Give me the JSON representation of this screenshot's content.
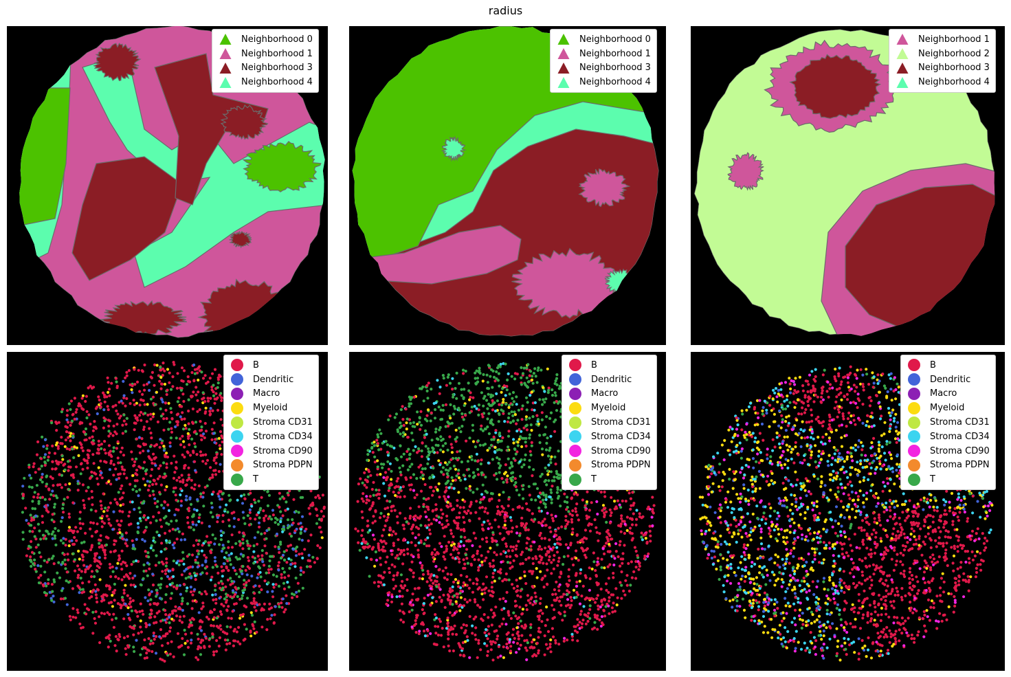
{
  "figure": {
    "title": "radius"
  },
  "colors": {
    "Neighborhood 0": "#4cc200",
    "Neighborhood 1": "#cf569b",
    "Neighborhood 2": "#c2fb95",
    "Neighborhood 3": "#8b1d25",
    "Neighborhood 4": "#5cfdae",
    "B": "#e0194a",
    "Dendritic": "#4264d9",
    "Macro": "#8c20b4",
    "Myeloid": "#fcdc10",
    "Stroma CD31": "#bfe842",
    "Stroma CD34": "#3cd4f0",
    "Stroma CD90": "#f224e0",
    "Stroma PDPN": "#f38a2c",
    "T": "#38a84a"
  },
  "chart_data": [
    {
      "type": "heatmap",
      "row": "top",
      "column": 1,
      "marker": "triangle",
      "legend": [
        "Neighborhood 0",
        "Neighborhood 1",
        "Neighborhood 3",
        "Neighborhood 4"
      ]
    },
    {
      "type": "heatmap",
      "row": "top",
      "column": 2,
      "marker": "triangle",
      "legend": [
        "Neighborhood 0",
        "Neighborhood 1",
        "Neighborhood 3",
        "Neighborhood 4"
      ]
    },
    {
      "type": "heatmap",
      "row": "top",
      "column": 3,
      "marker": "triangle",
      "legend": [
        "Neighborhood 1",
        "Neighborhood 2",
        "Neighborhood 3",
        "Neighborhood 4"
      ]
    },
    {
      "type": "scatter",
      "row": "bottom",
      "column": 1,
      "marker": "circle",
      "legend": [
        "B",
        "Dendritic",
        "Macro",
        "Myeloid",
        "Stroma CD31",
        "Stroma CD34",
        "Stroma CD90",
        "Stroma PDPN",
        "T"
      ]
    },
    {
      "type": "scatter",
      "row": "bottom",
      "column": 2,
      "marker": "circle",
      "legend": [
        "B",
        "Dendritic",
        "Macro",
        "Myeloid",
        "Stroma CD31",
        "Stroma CD34",
        "Stroma CD90",
        "Stroma PDPN",
        "T"
      ]
    },
    {
      "type": "scatter",
      "row": "bottom",
      "column": 3,
      "marker": "circle",
      "legend": [
        "B",
        "Dendritic",
        "Macro",
        "Myeloid",
        "Stroma CD31",
        "Stroma CD34",
        "Stroma CD90",
        "Stroma PDPN",
        "T"
      ]
    }
  ]
}
